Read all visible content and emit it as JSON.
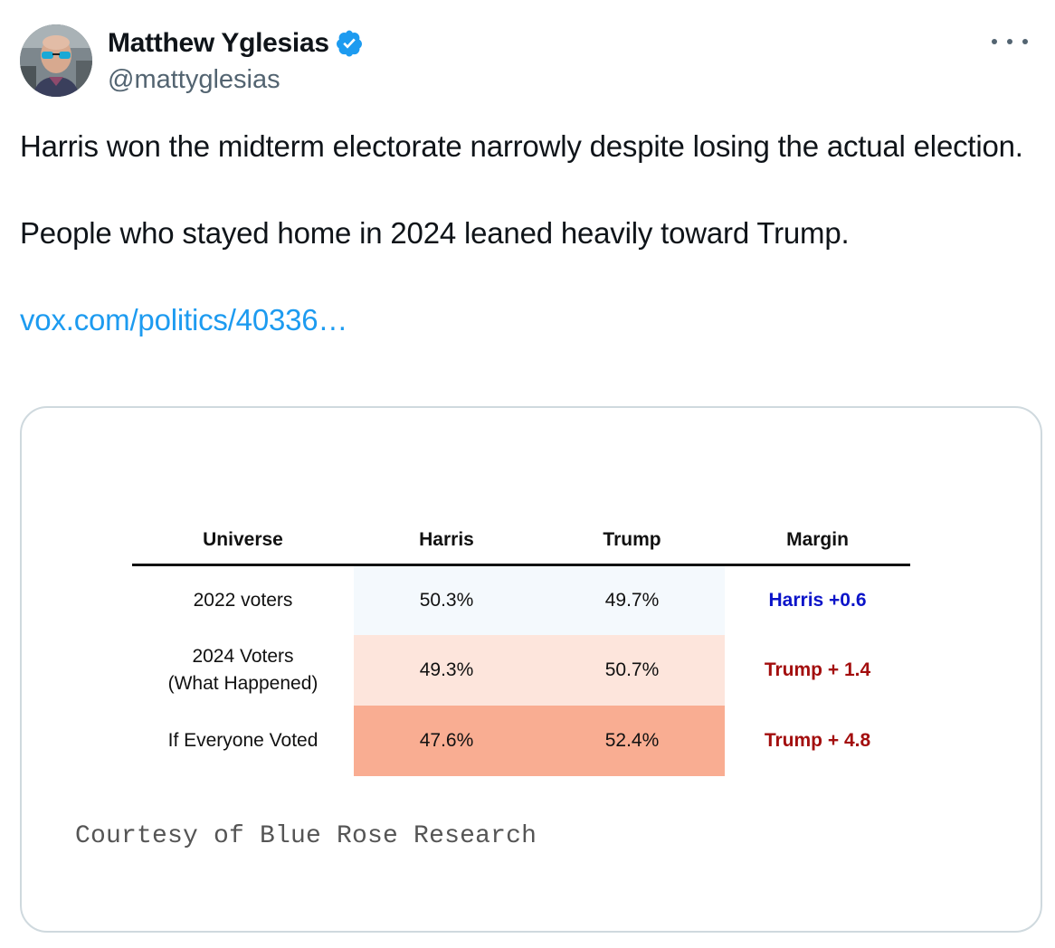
{
  "author": {
    "display_name": "Matthew Yglesias",
    "handle": "@mattyglesias",
    "verified_icon": "verified-badge-icon",
    "verified_color": "#1d9bf0"
  },
  "more_icon": "more-horizontal-icon",
  "tweet": {
    "line1": "Harris won the midterm electorate narrowly despite losing the actual election.",
    "line2": "People who stayed home in 2024 leaned heavily toward Trump.",
    "link_text": "vox.com/politics/40336…"
  },
  "media": {
    "table": {
      "headers": [
        "Universe",
        "Harris",
        "Trump",
        "Margin"
      ],
      "rows": [
        {
          "universe": "2022 voters",
          "harris": "50.3%",
          "trump": "49.7%",
          "margin": "Harris +0.6",
          "fill": "#f4f9fd",
          "margin_color": "#0b14c9"
        },
        {
          "universe_line1": "2024 Voters",
          "universe_line2": "(What Happened)",
          "harris": "49.3%",
          "trump": "50.7%",
          "margin": "Trump + 1.4",
          "fill": "#fde5dc",
          "margin_color": "#a30e0e"
        },
        {
          "universe": "If Everyone Voted",
          "harris": "47.6%",
          "trump": "52.4%",
          "margin": "Trump + 4.8",
          "fill": "#f9ad92",
          "margin_color": "#a30e0e"
        }
      ]
    },
    "caption": "Courtesy of Blue Rose Research"
  }
}
